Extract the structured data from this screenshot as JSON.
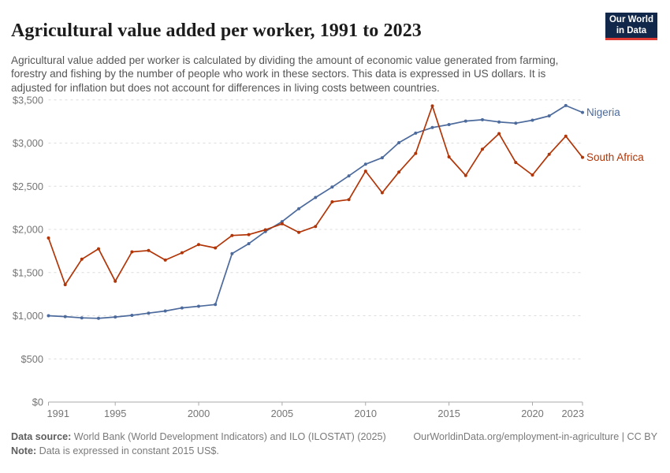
{
  "header": {
    "title": "Agricultural value added per worker, 1991 to 2023",
    "logo": {
      "line1": "Our World",
      "line2": "in Data",
      "bg_color": "#12284A",
      "stripe_color": "#DC3A32"
    }
  },
  "subtitle": "Agricultural value added per worker is calculated by dividing the amount of economic value generated from farming, forestry and fishing by the number of people who work in these sectors. This data is expressed in US dollars. It is adjusted for inflation but does not account for differences in living costs between countries.",
  "chart_data": {
    "type": "line",
    "title": "Agricultural value added per worker, 1991 to 2023",
    "x": [
      1991,
      1992,
      1993,
      1994,
      1995,
      1996,
      1997,
      1998,
      1999,
      2000,
      2001,
      2002,
      2003,
      2004,
      2005,
      2006,
      2007,
      2008,
      2009,
      2010,
      2011,
      2012,
      2013,
      2014,
      2015,
      2016,
      2017,
      2018,
      2019,
      2020,
      2021,
      2022,
      2023
    ],
    "series": [
      {
        "name": "Nigeria",
        "color": "#4C6A9C",
        "values": [
          1000,
          990,
          975,
          970,
          985,
          1005,
          1030,
          1055,
          1090,
          1110,
          1130,
          1720,
          1835,
          1975,
          2090,
          2240,
          2370,
          2490,
          2620,
          2755,
          2830,
          3005,
          3115,
          3180,
          3215,
          3255,
          3270,
          3245,
          3230,
          3265,
          3315,
          3435,
          3355
        ]
      },
      {
        "name": "South Africa",
        "color": "#B13507",
        "values": [
          1900,
          1360,
          1655,
          1775,
          1400,
          1740,
          1755,
          1645,
          1730,
          1825,
          1785,
          1930,
          1940,
          1995,
          2065,
          1965,
          2035,
          2320,
          2345,
          2675,
          2425,
          2665,
          2880,
          3430,
          2840,
          2625,
          2930,
          3110,
          2775,
          2630,
          2870,
          3080,
          2835
        ]
      }
    ],
    "ylim": [
      0,
      3500
    ],
    "yticks": [
      0,
      500,
      1000,
      1500,
      2000,
      2500,
      3000,
      3500
    ],
    "ytick_labels": [
      "$0",
      "$500",
      "$1,000",
      "$1,500",
      "$2,000",
      "$2,500",
      "$3,000",
      "$3,500"
    ],
    "xticks": [
      1991,
      1995,
      2000,
      2005,
      2010,
      2015,
      2020,
      2023
    ],
    "grid": "horizontal-dashed",
    "legend_position": "end-of-line-labels",
    "axis_color": "#a8a8a8",
    "grid_color": "#dcdcdc",
    "tick_label_color": "#757575"
  },
  "footer": {
    "source_label": "Data source:",
    "source_text": " World Bank (World Development Indicators) and ILO (ILOSTAT) (2025)",
    "link_text": "OurWorldinData.org/employment-in-agriculture | CC BY",
    "note_label": "Note:",
    "note_text": " Data is expressed in constant 2015 US$."
  }
}
